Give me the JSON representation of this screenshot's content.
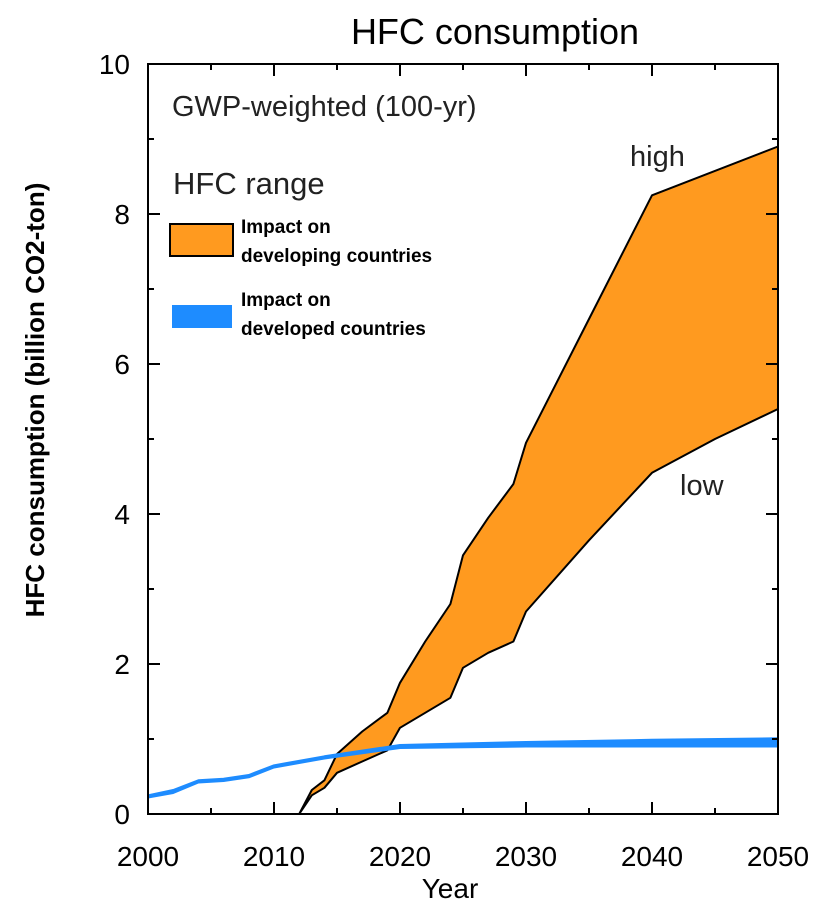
{
  "chart_data": {
    "type": "area",
    "title": "HFC consumption",
    "subtitle": "GWP-weighted (100-yr)",
    "xlabel": "Year",
    "ylabel": "HFC consumption (billion CO2-ton)",
    "xlim": [
      2000,
      2050
    ],
    "ylim": [
      0,
      10
    ],
    "x_ticks": [
      2000,
      2010,
      2020,
      2030,
      2040,
      2050
    ],
    "y_ticks": [
      0,
      2,
      4,
      6,
      8,
      10
    ],
    "legend": {
      "title": "HFC range",
      "position": "top-left",
      "entries": [
        {
          "line1": "Impact on",
          "line2": "developing countries",
          "color": "#ff9a1f"
        },
        {
          "line1": "Impact on",
          "line2": "developed countries",
          "color": "#1e8cff"
        }
      ]
    },
    "annotations": {
      "high": "high",
      "low": "low"
    },
    "series": [
      {
        "name": "Impact on developing countries",
        "color": "#ff9a1f",
        "upper": [
          [
            2000,
            0.0
          ],
          [
            2012,
            0.0
          ],
          [
            2013,
            0.32
          ],
          [
            2014,
            0.45
          ],
          [
            2015,
            0.8
          ],
          [
            2017,
            1.1
          ],
          [
            2019,
            1.35
          ],
          [
            2020,
            1.75
          ],
          [
            2022,
            2.3
          ],
          [
            2024,
            2.8
          ],
          [
            2025,
            3.45
          ],
          [
            2027,
            3.95
          ],
          [
            2029,
            4.4
          ],
          [
            2030,
            4.95
          ],
          [
            2035,
            6.6
          ],
          [
            2040,
            8.25
          ],
          [
            2050,
            8.9
          ]
        ],
        "lower": [
          [
            2000,
            0.0
          ],
          [
            2012,
            0.0
          ],
          [
            2013,
            0.25
          ],
          [
            2014,
            0.35
          ],
          [
            2015,
            0.55
          ],
          [
            2017,
            0.7
          ],
          [
            2019,
            0.85
          ],
          [
            2020,
            1.15
          ],
          [
            2022,
            1.35
          ],
          [
            2024,
            1.55
          ],
          [
            2025,
            1.95
          ],
          [
            2027,
            2.15
          ],
          [
            2029,
            2.3
          ],
          [
            2030,
            2.7
          ],
          [
            2035,
            3.65
          ],
          [
            2040,
            4.55
          ],
          [
            2045,
            5.0
          ],
          [
            2050,
            5.4
          ]
        ]
      },
      {
        "name": "Impact on developed countries",
        "color": "#1e8cff",
        "upper": [
          [
            2000,
            0.25
          ],
          [
            2002,
            0.32
          ],
          [
            2004,
            0.45
          ],
          [
            2006,
            0.47
          ],
          [
            2008,
            0.52
          ],
          [
            2010,
            0.65
          ],
          [
            2014,
            0.77
          ],
          [
            2020,
            0.92
          ],
          [
            2030,
            0.96
          ],
          [
            2040,
            0.99
          ],
          [
            2050,
            1.01
          ]
        ],
        "lower": [
          [
            2000,
            0.22
          ],
          [
            2002,
            0.28
          ],
          [
            2004,
            0.42
          ],
          [
            2006,
            0.44
          ],
          [
            2008,
            0.49
          ],
          [
            2010,
            0.62
          ],
          [
            2014,
            0.74
          ],
          [
            2020,
            0.88
          ],
          [
            2030,
            0.9
          ],
          [
            2040,
            0.9
          ],
          [
            2050,
            0.9
          ]
        ]
      }
    ]
  }
}
